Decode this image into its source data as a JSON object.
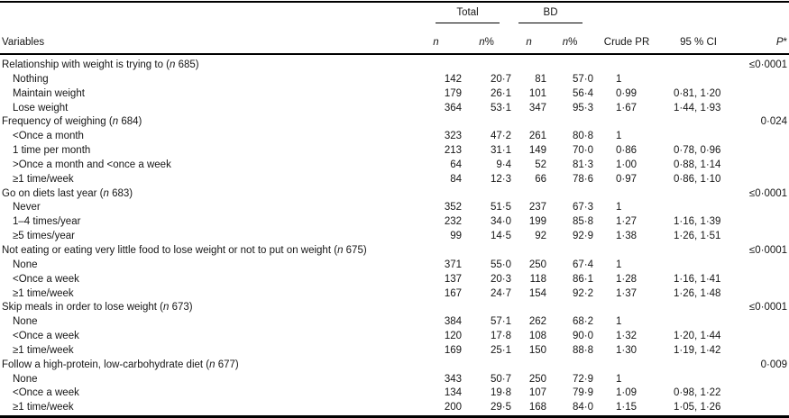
{
  "table": {
    "header": {
      "variables": "Variables",
      "total": "Total",
      "bd": "BD",
      "n": "n",
      "pct": "%",
      "crude_pr": "Crude PR",
      "ci": "95 % CI",
      "p": "P",
      "p_star": "*"
    },
    "sections": [
      {
        "label_parts": [
          {
            "t": "Relationship with weight is trying to ("
          },
          {
            "t": "n",
            "i": true
          },
          {
            "t": " 685)"
          }
        ],
        "p": "≤0·0001",
        "rows": [
          {
            "label": "Nothing",
            "total_n": "142",
            "total_pct": "20·7",
            "bd_n": "81",
            "bd_pct": "57·0",
            "crude_pr": "1",
            "ci": ""
          },
          {
            "label": "Maintain weight",
            "total_n": "179",
            "total_pct": "26·1",
            "bd_n": "101",
            "bd_pct": "56·4",
            "crude_pr": "0·99",
            "ci": "0·81, 1·20"
          },
          {
            "label": "Lose weight",
            "total_n": "364",
            "total_pct": "53·1",
            "bd_n": "347",
            "bd_pct": "95·3",
            "crude_pr": "1·67",
            "ci": "1·44, 1·93"
          }
        ]
      },
      {
        "label_parts": [
          {
            "t": "Frequency of weighing ("
          },
          {
            "t": "n",
            "i": true
          },
          {
            "t": " 684)"
          }
        ],
        "p": "0·024",
        "rows": [
          {
            "label": "<Once a month",
            "total_n": "323",
            "total_pct": "47·2",
            "bd_n": "261",
            "bd_pct": "80·8",
            "crude_pr": "1",
            "ci": ""
          },
          {
            "label": "1 time per month",
            "total_n": "213",
            "total_pct": "31·1",
            "bd_n": "149",
            "bd_pct": "70·0",
            "crude_pr": "0·86",
            "ci": "0·78, 0·96"
          },
          {
            "label": ">Once a month and <once a week",
            "total_n": "64",
            "total_pct": "9·4",
            "bd_n": "52",
            "bd_pct": "81·3",
            "crude_pr": "1·00",
            "ci": "0·88, 1·14"
          },
          {
            "label": "≥1 time/week",
            "total_n": "84",
            "total_pct": "12·3",
            "bd_n": "66",
            "bd_pct": "78·6",
            "crude_pr": "0·97",
            "ci": "0·86, 1·10"
          }
        ]
      },
      {
        "label_parts": [
          {
            "t": "Go on diets last year ("
          },
          {
            "t": "n",
            "i": true
          },
          {
            "t": " 683)"
          }
        ],
        "p": "≤0·0001",
        "rows": [
          {
            "label": "Never",
            "total_n": "352",
            "total_pct": "51·5",
            "bd_n": "237",
            "bd_pct": "67·3",
            "crude_pr": "1",
            "ci": ""
          },
          {
            "label": "1–4 times/year",
            "total_n": "232",
            "total_pct": "34·0",
            "bd_n": "199",
            "bd_pct": "85·8",
            "crude_pr": "1·27",
            "ci": "1·16, 1·39"
          },
          {
            "label": "≥5 times/year",
            "total_n": "99",
            "total_pct": "14·5",
            "bd_n": "92",
            "bd_pct": "92·9",
            "crude_pr": "1·38",
            "ci": "1·26, 1·51"
          }
        ]
      },
      {
        "label_parts": [
          {
            "t": "Not eating or eating very little food to lose weight or not to put on weight ("
          },
          {
            "t": "n",
            "i": true
          },
          {
            "t": " 675)"
          }
        ],
        "p": "≤0·0001",
        "rows": [
          {
            "label": "None",
            "total_n": "371",
            "total_pct": "55·0",
            "bd_n": "250",
            "bd_pct": "67·4",
            "crude_pr": "1",
            "ci": ""
          },
          {
            "label": "<Once a week",
            "total_n": "137",
            "total_pct": "20·3",
            "bd_n": "118",
            "bd_pct": "86·1",
            "crude_pr": "1·28",
            "ci": "1·16, 1·41"
          },
          {
            "label": "≥1 time/week",
            "total_n": "167",
            "total_pct": "24·7",
            "bd_n": "154",
            "bd_pct": "92·2",
            "crude_pr": "1·37",
            "ci": "1·26, 1·48"
          }
        ]
      },
      {
        "label_parts": [
          {
            "t": "Skip meals in order to lose weight ("
          },
          {
            "t": "n",
            "i": true
          },
          {
            "t": " 673)"
          }
        ],
        "p": "≤0·0001",
        "rows": [
          {
            "label": "None",
            "total_n": "384",
            "total_pct": "57·1",
            "bd_n": "262",
            "bd_pct": "68·2",
            "crude_pr": "1",
            "ci": ""
          },
          {
            "label": "<Once a week",
            "total_n": "120",
            "total_pct": "17·8",
            "bd_n": "108",
            "bd_pct": "90·0",
            "crude_pr": "1·32",
            "ci": "1·20, 1·44"
          },
          {
            "label": "≥1 time/week",
            "total_n": "169",
            "total_pct": "25·1",
            "bd_n": "150",
            "bd_pct": "88·8",
            "crude_pr": "1·30",
            "ci": "1·19, 1·42"
          }
        ]
      },
      {
        "label_parts": [
          {
            "t": "Follow a high-protein, low-carbohydrate diet ("
          },
          {
            "t": "n",
            "i": true
          },
          {
            "t": " 677)"
          }
        ],
        "p": "0·009",
        "rows": [
          {
            "label": "None",
            "total_n": "343",
            "total_pct": "50·7",
            "bd_n": "250",
            "bd_pct": "72·9",
            "crude_pr": "1",
            "ci": ""
          },
          {
            "label": "<Once a week",
            "total_n": "134",
            "total_pct": "19·8",
            "bd_n": "107",
            "bd_pct": "79·9",
            "crude_pr": "1·09",
            "ci": "0·98, 1·22"
          },
          {
            "label": "≥1 time/week",
            "total_n": "200",
            "total_pct": "29·5",
            "bd_n": "168",
            "bd_pct": "84·0",
            "crude_pr": "1·15",
            "ci": "1·05, 1·26"
          }
        ]
      }
    ]
  }
}
